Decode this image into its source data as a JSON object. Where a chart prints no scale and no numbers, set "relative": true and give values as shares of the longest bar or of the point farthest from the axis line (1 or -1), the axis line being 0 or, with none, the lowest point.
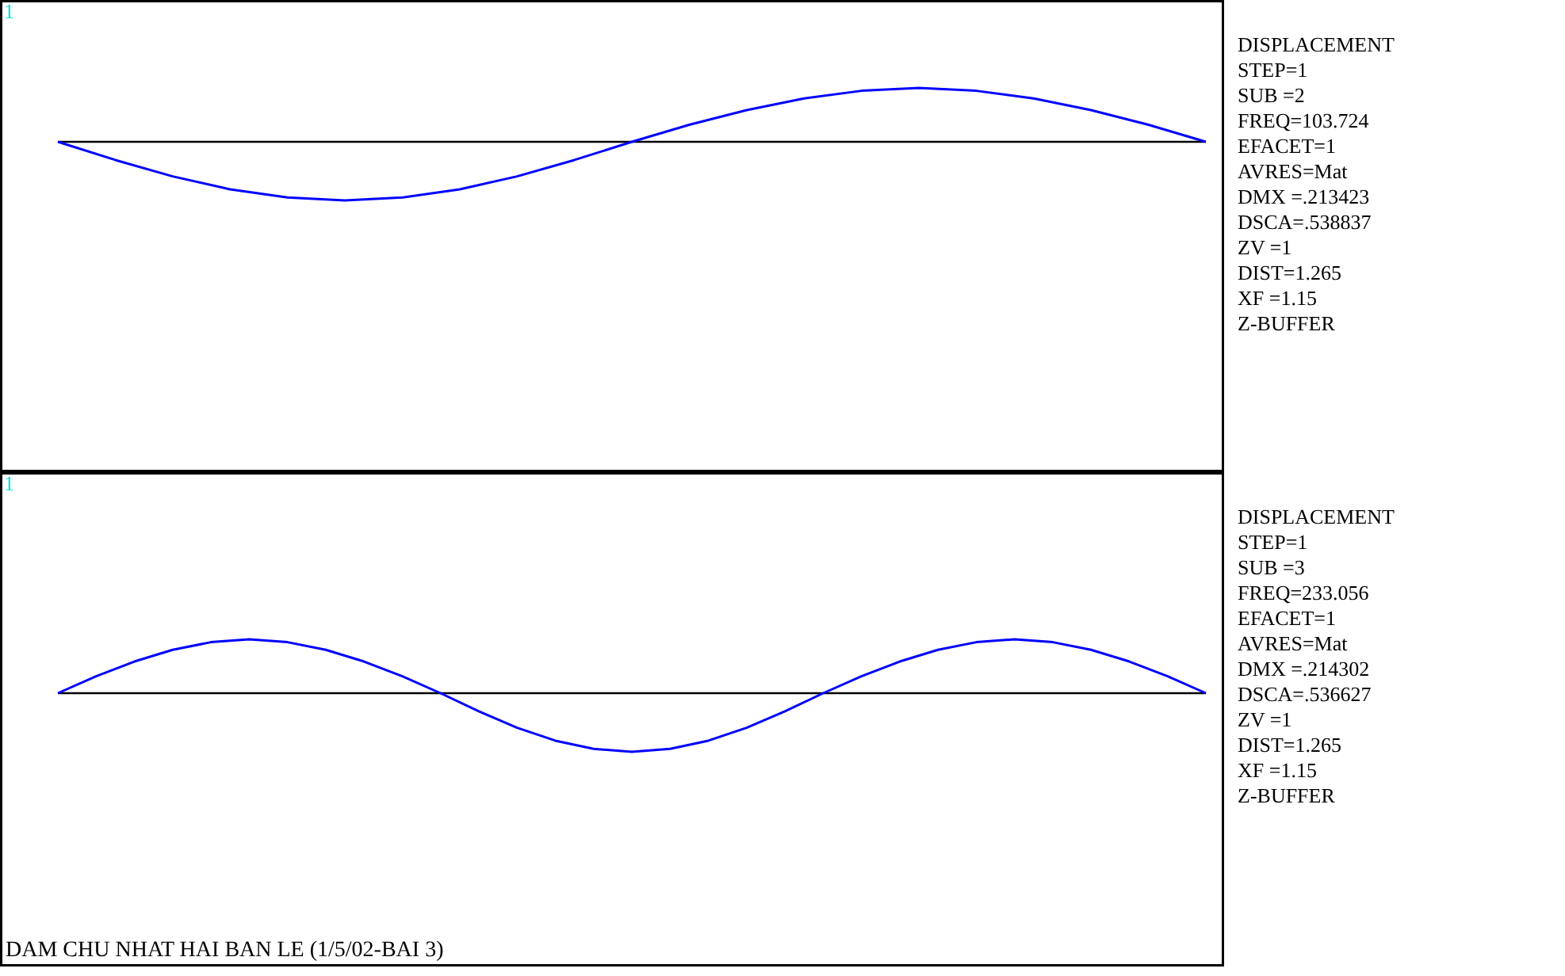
{
  "chart_data": [
    {
      "type": "line",
      "relative": true,
      "categories": [
        null,
        null,
        null,
        null,
        null,
        null,
        null,
        null,
        null,
        null,
        null,
        null,
        null,
        null,
        null,
        null,
        null,
        null,
        null,
        null,
        null
      ],
      "series": [
        {
          "color": "#0000ff",
          "values": [
            0,
            -0.31,
            -0.59,
            -0.81,
            -0.95,
            -1,
            -0.95,
            -0.81,
            -0.59,
            -0.31,
            0,
            0.29,
            0.54,
            0.74,
            0.87,
            0.92,
            0.87,
            0.74,
            0.54,
            0.29,
            0
          ]
        }
      ],
      "ref_lines": [
        {
          "axis": "y",
          "value": 0,
          "color": "#000000"
        }
      ],
      "annotations": [
        "1"
      ],
      "grid": false,
      "tick_labels": false
    },
    {
      "type": "other",
      "annotations": [
        "DISPLACEMENT",
        "STEP=1",
        "SUB =2",
        "FREQ=103.724",
        "EFACET=1",
        "AVRES=Mat",
        "DMX =.213423",
        "DSCA=.538837",
        "ZV  =1",
        "DIST=1.265",
        "XF  =1.15",
        "Z-BUFFER"
      ]
    },
    {
      "type": "line",
      "relative": true,
      "categories": [
        null,
        null,
        null,
        null,
        null,
        null,
        null,
        null,
        null,
        null,
        null,
        null,
        null,
        null,
        null,
        null,
        null,
        null,
        null,
        null,
        null,
        null,
        null,
        null,
        null,
        null,
        null,
        null,
        null,
        null,
        null
      ],
      "series": [
        {
          "color": "#0000ff",
          "values": [
            0,
            0.29,
            0.54,
            0.74,
            0.87,
            0.92,
            0.87,
            0.74,
            0.54,
            0.29,
            0,
            -0.31,
            -0.59,
            -0.81,
            -0.95,
            -1,
            -0.95,
            -0.81,
            -0.59,
            -0.31,
            0,
            0.29,
            0.54,
            0.74,
            0.87,
            0.92,
            0.87,
            0.74,
            0.54,
            0.29,
            0
          ]
        }
      ],
      "ref_lines": [
        {
          "axis": "y",
          "value": 0,
          "color": "#000000"
        }
      ],
      "annotations": [
        "1",
        "DAM CHU NHAT HAI BAN LE (1/5/02-BAI 3)"
      ],
      "grid": false,
      "tick_labels": false
    },
    {
      "type": "other",
      "annotations": [
        "DISPLACEMENT",
        "STEP=1",
        "SUB =3",
        "FREQ=233.056",
        "EFACET=1",
        "AVRES=Mat",
        "DMX =.214302",
        "DSCA=.536627",
        "ZV  =1",
        "DIST=1.265",
        "XF  =1.15",
        "Z-BUFFER"
      ]
    }
  ]
}
